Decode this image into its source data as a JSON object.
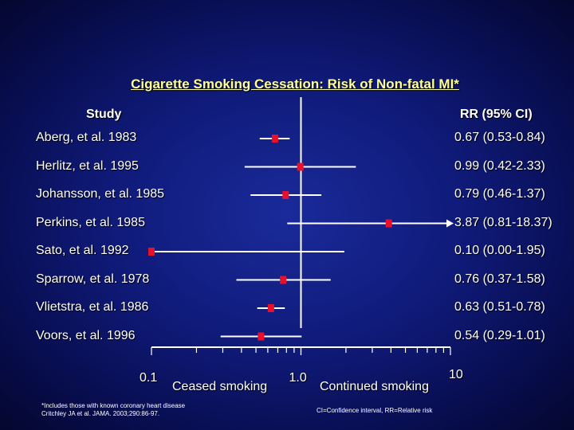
{
  "title": "Cigarette Smoking Cessation: Risk of Non-fatal MI*",
  "headers": {
    "study": "Study",
    "rr": "RR (95% CI)"
  },
  "colors": {
    "marker": "#e8102a",
    "line": "#ffffff",
    "title": "#ffff99"
  },
  "chart_data": {
    "type": "forest",
    "x_scale": "log",
    "xlim": [
      0.1,
      10
    ],
    "reference_line": 1.0,
    "x_ticks": [
      "0.1",
      "1.0",
      "10"
    ],
    "x_side_labels": {
      "left": "Ceased smoking",
      "right": "Continued smoking"
    },
    "studies": [
      {
        "name": "Aberg, et al. 1983",
        "rr": 0.67,
        "ci_low": 0.53,
        "ci_high": 0.84,
        "label": "0.67   (0.53-0.84)"
      },
      {
        "name": "Herlitz, et al. 1995",
        "rr": 0.99,
        "ci_low": 0.42,
        "ci_high": 2.33,
        "label": "0.99   (0.42-2.33)"
      },
      {
        "name": "Johansson, et al. 1985",
        "rr": 0.79,
        "ci_low": 0.46,
        "ci_high": 1.37,
        "label": "0.79    (0.46-1.37)"
      },
      {
        "name": "Perkins, et al. 1985",
        "rr": 3.87,
        "ci_low": 0.81,
        "ci_high": 18.37,
        "label": "3.87 (0.81-18.37)",
        "arrow": true
      },
      {
        "name": "Sato, et al. 1992",
        "rr": 0.1,
        "ci_low": 0.0,
        "ci_high": 1.95,
        "label": "0.10   (0.00-1.95)"
      },
      {
        "name": "Sparrow, et al. 1978",
        "rr": 0.76,
        "ci_low": 0.37,
        "ci_high": 1.58,
        "label": "0.76   (0.37-1.58)"
      },
      {
        "name": "Vlietstra, et al. 1986",
        "rr": 0.63,
        "ci_low": 0.51,
        "ci_high": 0.78,
        "label": "0.63   (0.51-0.78)"
      },
      {
        "name": "Voors, et al. 1996",
        "rr": 0.54,
        "ci_low": 0.29,
        "ci_high": 1.01,
        "label": "0.54   (0.29-1.01)"
      }
    ]
  },
  "footnote": {
    "line1": "*Includes those with known coronary heart disease",
    "line2": "Critchley JA et al. JAMA. 2003;290:86-97."
  },
  "ci_note": "CI=Confidence interval, RR=Relative risk"
}
